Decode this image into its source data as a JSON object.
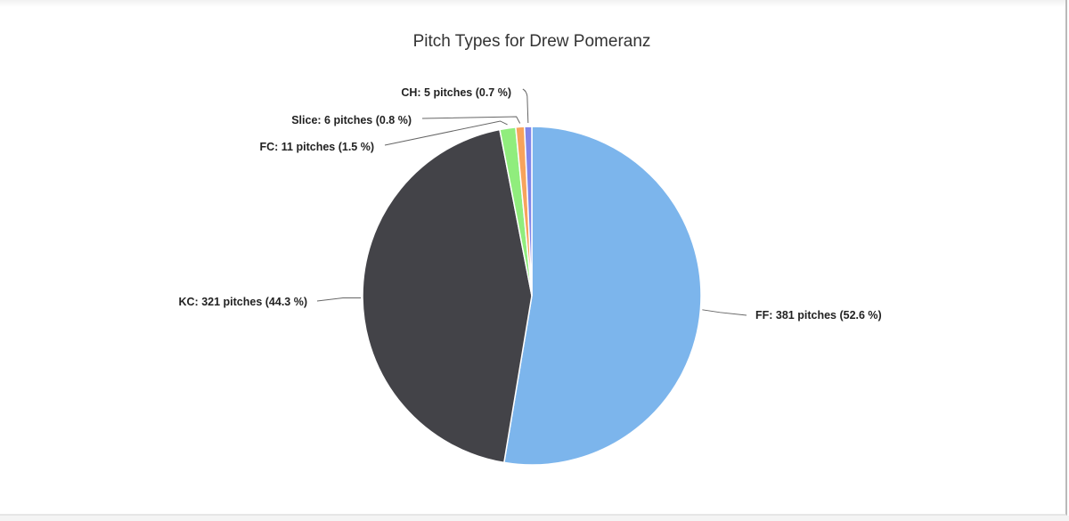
{
  "chart_data": {
    "type": "pie",
    "title": "Pitch Types for Drew Pomeranz",
    "categories": [
      "FF",
      "KC",
      "FC",
      "Slice",
      "CH"
    ],
    "values": [
      381,
      321,
      11,
      6,
      5
    ],
    "percentages": [
      52.6,
      44.3,
      1.5,
      0.8,
      0.7
    ],
    "colors": [
      "#7cb5ec",
      "#434348",
      "#90ed7d",
      "#f7a35c",
      "#8085e9"
    ],
    "labels": [
      "FF: 381 pitches (52.6 %)",
      "KC: 321 pitches (44.3 %)",
      "FC: 11 pitches (1.5 %)",
      "Slice: 6 pitches (0.8 %)",
      "CH: 5 pitches (0.7 %)"
    ],
    "start_angle": 0,
    "direction": "clockwise",
    "legend": "none"
  }
}
